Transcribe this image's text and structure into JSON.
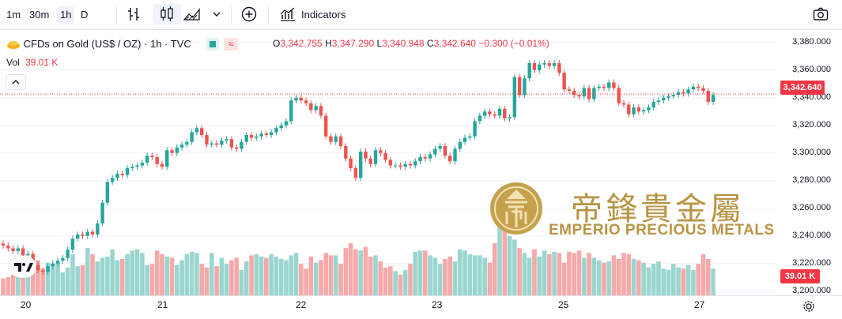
{
  "toolbar": {
    "intervals": [
      "1m",
      "30m",
      "1h",
      "D"
    ],
    "active_interval": "1h",
    "indicators_label": "Indicators"
  },
  "legend": {
    "symbol": "CFDs on Gold (US$ / OZ) · 1h · TVC",
    "O": "3,342.755",
    "H": "3,347.290",
    "L": "3,340.948",
    "C": "3,342.640",
    "change": "−0.300 (−0.01%)",
    "vol_label": "Vol",
    "vol_value": "39.01 K"
  },
  "price_tag": "3,342.640",
  "vol_tag": "39.01 K",
  "watermark": {
    "chinese": "帝鋒貴金屬",
    "english": "EMPERIO PRECIOUS METALS"
  },
  "colors": {
    "up": "#26a69a",
    "down": "#ef5350",
    "vol_up": "#9ad6cf",
    "vol_down": "#f5a9a9",
    "accent": "#f23645"
  },
  "chart_data": {
    "type": "candlestick",
    "y_axis_ticks": [
      "3,380.000",
      "3,360.000",
      "3,340.000",
      "3,320.000",
      "3,300.000",
      "3,280.000",
      "3,260.000",
      "3,240.000",
      "3,220.000",
      "3,200.000"
    ],
    "ylim": [
      3197,
      3389
    ],
    "x_axis_ticks": [
      "20",
      "21",
      "22",
      "23",
      "25",
      "27"
    ],
    "series": [
      {
        "name": "close",
        "values": [
          3233,
          3231,
          3229,
          3231,
          3226,
          3227,
          3219,
          3215,
          3214,
          3218,
          3220,
          3222,
          3224,
          3230,
          3238,
          3241,
          3240,
          3243,
          3241,
          3249,
          3264,
          3279,
          3282,
          3285,
          3284,
          3289,
          3290,
          3291,
          3293,
          3298,
          3297,
          3292,
          3290,
          3302,
          3300,
          3304,
          3306,
          3308,
          3315,
          3318,
          3313,
          3306,
          3307,
          3306,
          3309,
          3310,
          3304,
          3303,
          3308,
          3313,
          3311,
          3312,
          3314,
          3313,
          3315,
          3318,
          3320,
          3323,
          3338,
          3340,
          3338,
          3336,
          3331,
          3334,
          3327,
          3312,
          3308,
          3312,
          3305,
          3296,
          3289,
          3282,
          3301,
          3296,
          3292,
          3302,
          3300,
          3295,
          3291,
          3291,
          3290,
          3292,
          3291,
          3294,
          3297,
          3296,
          3299,
          3303,
          3305,
          3298,
          3294,
          3303,
          3308,
          3311,
          3312,
          3323,
          3327,
          3330,
          3328,
          3327,
          3332,
          3325,
          3326,
          3355,
          3342,
          3354,
          3365,
          3360,
          3364,
          3365,
          3363,
          3365,
          3358,
          3346,
          3345,
          3342,
          3341,
          3347,
          3339,
          3347,
          3348,
          3347,
          3351,
          3347,
          3336,
          3335,
          3328,
          3333,
          3330,
          3331,
          3333,
          3337,
          3338,
          3340,
          3341,
          3342,
          3344,
          3343,
          3346,
          3348,
          3347,
          3345,
          3337,
          3342
        ]
      },
      {
        "name": "volume",
        "values": [
          14,
          15,
          17,
          16,
          19,
          16,
          21,
          29,
          22,
          27,
          26,
          27,
          19,
          23,
          34,
          24,
          25,
          39,
          34,
          28,
          31,
          32,
          38,
          29,
          30,
          34,
          37,
          38,
          35,
          25,
          26,
          37,
          34,
          32,
          31,
          25,
          29,
          34,
          36,
          35,
          26,
          23,
          35,
          24,
          31,
          26,
          29,
          31,
          21,
          28,
          33,
          34,
          32,
          31,
          34,
          32,
          30,
          29,
          33,
          35,
          26,
          22,
          32,
          27,
          29,
          35,
          33,
          33,
          26,
          39,
          43,
          38,
          37,
          40,
          32,
          33,
          28,
          23,
          24,
          20,
          17,
          21,
          26,
          36,
          37,
          37,
          33,
          31,
          26,
          30,
          32,
          28,
          38,
          37,
          34,
          33,
          33,
          31,
          27,
          43,
          59,
          54,
          49,
          46,
          39,
          35,
          31,
          38,
          32,
          37,
          34,
          36,
          35,
          27,
          36,
          35,
          37,
          31,
          35,
          31,
          29,
          27,
          28,
          33,
          30,
          35,
          34,
          30,
          29,
          27,
          23,
          26,
          28,
          22,
          21,
          26,
          23,
          22,
          25,
          21,
          26,
          34,
          30,
          22
        ]
      }
    ],
    "up_flags_note": "close > open => green"
  }
}
